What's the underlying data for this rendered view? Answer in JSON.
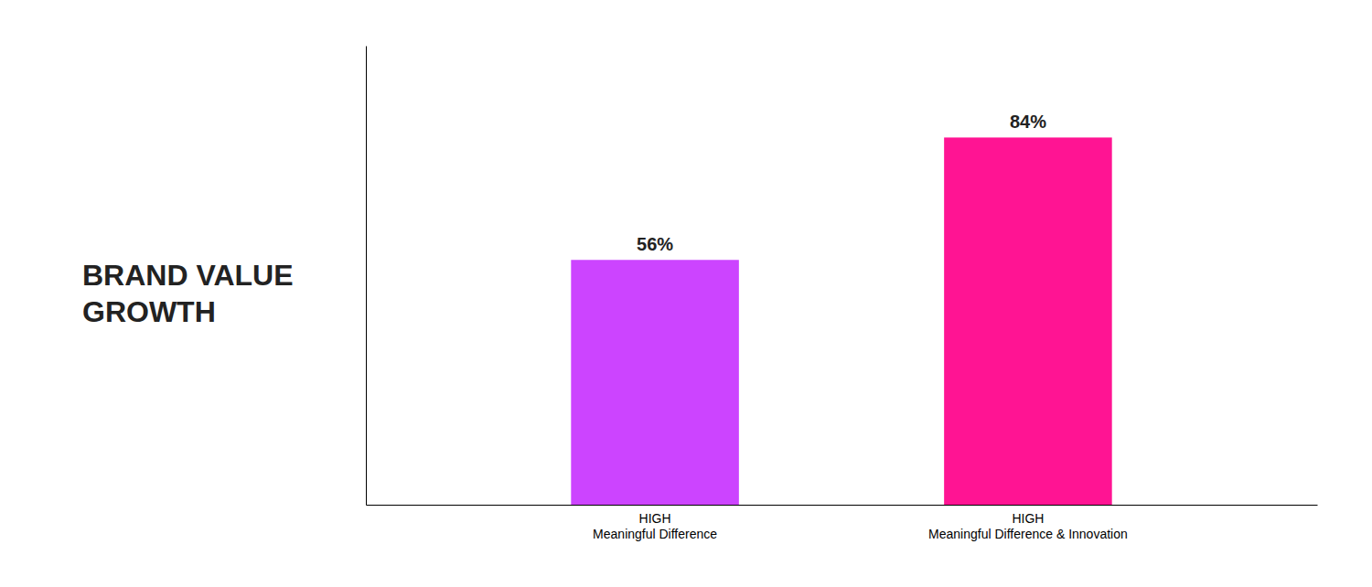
{
  "chart_data": {
    "type": "bar",
    "title": "BRAND VALUE\nGROWTH",
    "categories": [
      "HIGH\nMeaningful Difference",
      "HIGH\nMeaningful Difference & Innovation"
    ],
    "values": [
      56,
      84
    ],
    "value_labels": [
      "56%",
      "84%"
    ],
    "data_labels": true,
    "colors": [
      "#CC44FF",
      "#FF1493"
    ],
    "ylim": [
      0,
      105
    ],
    "tick_labels": "x"
  }
}
